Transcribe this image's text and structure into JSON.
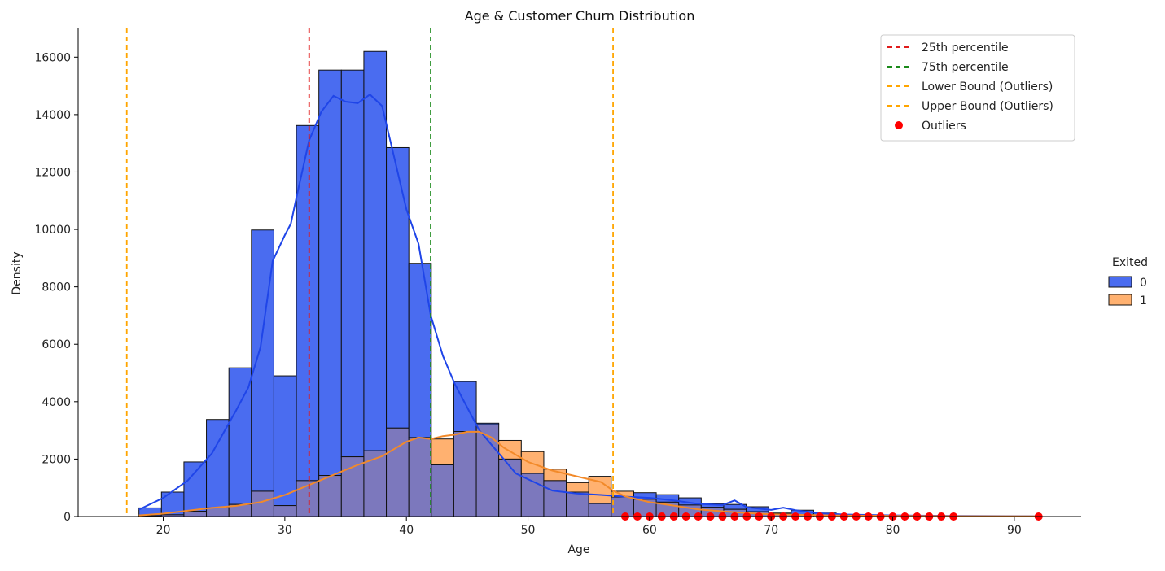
{
  "chart_data": {
    "type": "histogram",
    "title": "Age & Customer Churn Distribution",
    "xlabel": "Age",
    "ylabel": "Density",
    "xlim": [
      13,
      95.5
    ],
    "ylim": [
      0,
      17000
    ],
    "xticks": [
      20,
      30,
      40,
      50,
      60,
      70,
      80,
      90
    ],
    "yticks": [
      0,
      2000,
      4000,
      6000,
      8000,
      10000,
      12000,
      14000,
      16000
    ],
    "bins": {
      "edges": [
        18,
        19.85,
        21.7,
        23.55,
        25.4,
        27.25,
        29.1,
        30.95,
        32.8,
        34.65,
        36.5,
        38.35,
        40.2,
        42.05,
        43.9,
        45.75,
        47.6,
        49.45,
        51.3,
        53.15,
        55,
        56.85,
        58.7,
        60.55,
        62.4,
        64.25,
        66.1,
        67.95,
        69.8,
        71.65,
        73.5,
        75.35,
        77.2,
        79.05,
        80.9,
        82.75,
        84.6,
        86.45,
        88.3,
        90.15,
        92
      ]
    },
    "series": [
      {
        "name": "0",
        "color": "#4a6cf0",
        "kde_color": "#1f45e8",
        "counts": [
          300,
          850,
          1900,
          3380,
          5180,
          9980,
          4900,
          13620,
          15550,
          15550,
          16200,
          12850,
          8820,
          1800,
          4700,
          3250,
          2000,
          1500,
          1250,
          850,
          450,
          680,
          830,
          760,
          650,
          450,
          420,
          340,
          120,
          220,
          120,
          60,
          40,
          25,
          20,
          12,
          8,
          4,
          2,
          10
        ],
        "kde": [
          [
            18,
            240
          ],
          [
            20,
            650
          ],
          [
            22,
            1250
          ],
          [
            24,
            2200
          ],
          [
            26,
            3700
          ],
          [
            27,
            4500
          ],
          [
            28,
            5900
          ],
          [
            29,
            8900
          ],
          [
            30,
            9800
          ],
          [
            30.5,
            10200
          ],
          [
            31,
            11200
          ],
          [
            32,
            13100
          ],
          [
            33,
            14100
          ],
          [
            34,
            14650
          ],
          [
            35,
            14450
          ],
          [
            36,
            14400
          ],
          [
            37,
            14700
          ],
          [
            38,
            14300
          ],
          [
            39,
            12500
          ],
          [
            40,
            10700
          ],
          [
            41,
            9500
          ],
          [
            42,
            7000
          ],
          [
            43,
            5600
          ],
          [
            44,
            4600
          ],
          [
            45,
            3800
          ],
          [
            46,
            3000
          ],
          [
            47,
            2500
          ],
          [
            48,
            2000
          ],
          [
            49,
            1500
          ],
          [
            50,
            1300
          ],
          [
            52,
            900
          ],
          [
            54,
            800
          ],
          [
            56,
            750
          ],
          [
            58,
            690
          ],
          [
            60,
            650
          ],
          [
            62,
            560
          ],
          [
            64,
            440
          ],
          [
            66,
            400
          ],
          [
            67,
            560
          ],
          [
            68,
            320
          ],
          [
            70,
            230
          ],
          [
            71,
            310
          ],
          [
            72,
            220
          ],
          [
            74,
            110
          ],
          [
            76,
            70
          ],
          [
            80,
            40
          ],
          [
            85,
            20
          ],
          [
            92,
            10
          ]
        ]
      },
      {
        "name": "1",
        "color": "#ffb170",
        "kde_color": "#f28a2a",
        "counts": [
          30,
          60,
          180,
          300,
          420,
          880,
          380,
          1250,
          1430,
          2080,
          2290,
          3080,
          2750,
          2700,
          2960,
          3200,
          2650,
          2260,
          1650,
          1180,
          1400,
          880,
          600,
          500,
          400,
          320,
          250,
          170,
          110,
          70,
          45,
          30,
          20,
          12,
          8,
          5,
          3,
          2,
          1,
          1
        ],
        "kde": [
          [
            18,
            40
          ],
          [
            20,
            100
          ],
          [
            22,
            200
          ],
          [
            24,
            300
          ],
          [
            26,
            370
          ],
          [
            28,
            500
          ],
          [
            30,
            750
          ],
          [
            32,
            1100
          ],
          [
            34,
            1450
          ],
          [
            36,
            1800
          ],
          [
            38,
            2100
          ],
          [
            40,
            2600
          ],
          [
            41,
            2750
          ],
          [
            42,
            2700
          ],
          [
            43,
            2800
          ],
          [
            44,
            2850
          ],
          [
            45,
            2950
          ],
          [
            46,
            2950
          ],
          [
            47,
            2750
          ],
          [
            48,
            2400
          ],
          [
            50,
            1900
          ],
          [
            52,
            1600
          ],
          [
            54,
            1400
          ],
          [
            56,
            1200
          ],
          [
            57,
            900
          ],
          [
            58,
            700
          ],
          [
            60,
            500
          ],
          [
            62,
            380
          ],
          [
            64,
            250
          ],
          [
            66,
            180
          ],
          [
            68,
            120
          ],
          [
            70,
            80
          ],
          [
            72,
            60
          ],
          [
            75,
            40
          ],
          [
            80,
            20
          ],
          [
            85,
            10
          ],
          [
            92,
            5
          ]
        ]
      }
    ],
    "overlap_color": "#7c78bd",
    "vlines": [
      {
        "name": "25th percentile",
        "x": 32,
        "color": "#e01b1b"
      },
      {
        "name": "75th percentile",
        "x": 42,
        "color": "#1a8a1a"
      },
      {
        "name": "Lower Bound (Outliers)",
        "x": 17,
        "color": "#ffa500"
      },
      {
        "name": "Upper Bound (Outliers)",
        "x": 57,
        "color": "#ffa500"
      }
    ],
    "outliers": {
      "name": "Outliers",
      "color": "#ff0000",
      "x": [
        58,
        59,
        60,
        61,
        62,
        63,
        64,
        65,
        66,
        67,
        68,
        69,
        70,
        71,
        72,
        73,
        74,
        75,
        76,
        77,
        78,
        79,
        80,
        81,
        82,
        83,
        84,
        85,
        92
      ],
      "y": 0
    },
    "legend_placement": "top-right",
    "hue_legend": {
      "title": "Exited",
      "entries": [
        "0",
        "1"
      ],
      "placement": "outside-right"
    },
    "grid": false
  }
}
